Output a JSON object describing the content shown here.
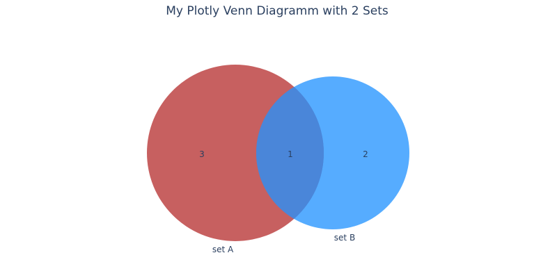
{
  "chart_data": {
    "type": "venn",
    "title": "My Plotly Venn Diagramm with 2 Sets",
    "sets": [
      {
        "name": "set A",
        "color": "#b22222"
      },
      {
        "name": "set B",
        "color": "#1e90ff"
      }
    ],
    "regions": {
      "a_only": "3",
      "intersection": "1",
      "b_only": "2"
    }
  },
  "colors": {
    "intersection": "#4a86d9",
    "text": "#2a3f5f"
  }
}
